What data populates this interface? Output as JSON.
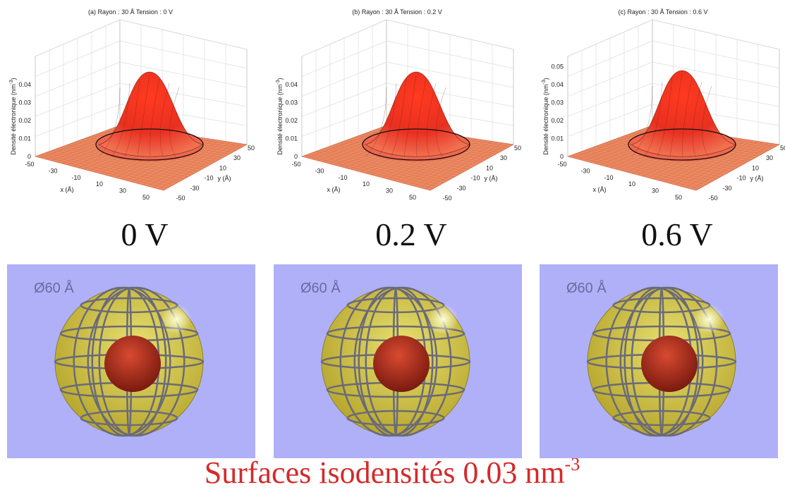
{
  "plots": [
    {
      "title": "(a) Rayon : 30 Å Tension : 0 V",
      "zlabel": "Densité électronique (nm",
      "zlabel_sup": "-3",
      "zlabel_end": ")",
      "zticks": [
        "0",
        "0.01",
        "0.02",
        "0.03",
        "0.04"
      ],
      "xlabel": "x (Å)",
      "xticks": [
        "-50",
        "-30",
        "-10",
        "10",
        "30",
        "50"
      ],
      "ylabel": "y (Å)",
      "yticks": [
        "-50",
        "-30",
        "-10",
        "10",
        "30",
        "50"
      ],
      "voltage": "0 V"
    },
    {
      "title": "(b) Rayon : 30 Å Tension : 0.2 V",
      "zlabel": "Densité électronique (nm",
      "zlabel_sup": "-3",
      "zlabel_end": ")",
      "zticks": [
        "0",
        "0.01",
        "0.02",
        "0.03",
        "0.04"
      ],
      "xlabel": "x (Å)",
      "xticks": [
        "-50",
        "-30",
        "-10",
        "10",
        "30",
        "50"
      ],
      "ylabel": "y (Å)",
      "yticks": [
        "-50",
        "-30",
        "-10",
        "10",
        "30",
        "50"
      ],
      "voltage": "0.2 V"
    },
    {
      "title": "(c) Rayon : 30 Å Tension : 0.6 V",
      "zlabel": "Densité électronique (nm",
      "zlabel_sup": "-3",
      "zlabel_end": ")",
      "zticks": [
        "0",
        "0.01",
        "0.02",
        "0.03",
        "0.04",
        "0.05"
      ],
      "xlabel": "x (Å)",
      "xticks": [
        "-50",
        "-30",
        "-10",
        "10",
        "30",
        "50"
      ],
      "ylabel": "y (Å)",
      "yticks": [
        "-50",
        "-30",
        "-10",
        "10",
        "30",
        "50"
      ],
      "voltage": "0.6 V"
    }
  ],
  "renders": [
    {
      "label": "Ø60 Å"
    },
    {
      "label": "Ø60 Å"
    },
    {
      "label": "Ø60 Å"
    }
  ],
  "caption": {
    "text": "Surfaces isodensités 0.03 nm",
    "sup": "-3"
  }
}
